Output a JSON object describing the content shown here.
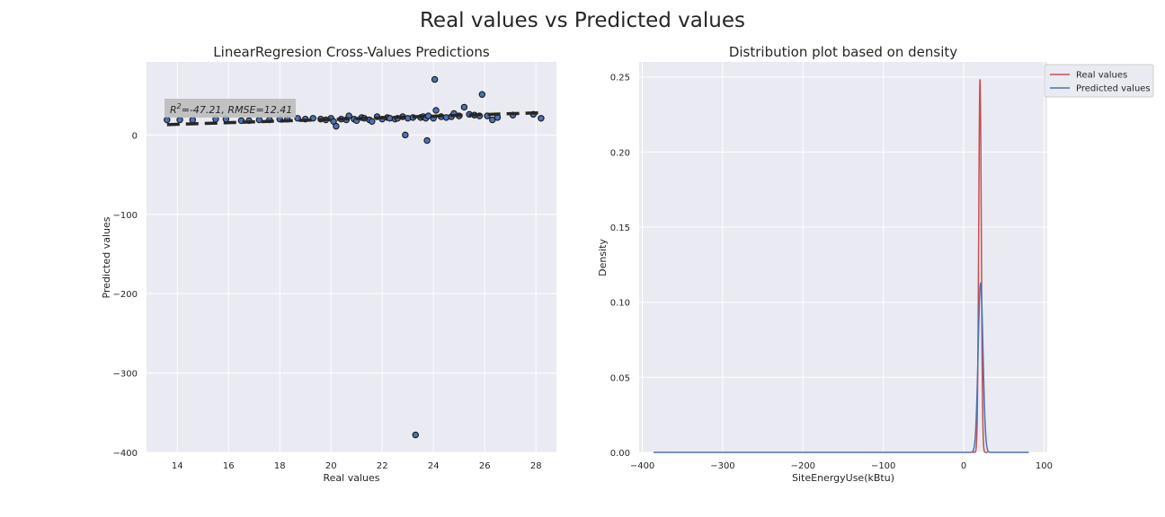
{
  "suptitle": "Real values vs Predicted values",
  "chart_data": [
    {
      "type": "scatter",
      "title": "LinearRegresion Cross-Values Predictions",
      "xlabel": "Real values",
      "ylabel": "Predicted values",
      "xlim": [
        12.8,
        28.8
      ],
      "ylim": [
        -400,
        92
      ],
      "xticks": [
        14,
        16,
        18,
        20,
        22,
        24,
        26,
        28
      ],
      "yticks": [
        -400,
        -300,
        -200,
        -100,
        0
      ],
      "grid": true,
      "annotation": {
        "base": "R",
        "sup": "2",
        "text": "=-47.21, RMSE=12.41"
      },
      "fit_line": {
        "x": [
          13.6,
          28.2
        ],
        "y": [
          13,
          28
        ]
      },
      "marker_color": "#4c72b0",
      "points": [
        [
          13.6,
          19
        ],
        [
          14.1,
          19
        ],
        [
          14.6,
          19
        ],
        [
          15.5,
          20
        ],
        [
          15.9,
          20
        ],
        [
          16.5,
          18
        ],
        [
          16.8,
          18
        ],
        [
          17.2,
          19
        ],
        [
          17.6,
          19
        ],
        [
          18.0,
          20
        ],
        [
          18.3,
          20
        ],
        [
          18.7,
          21
        ],
        [
          19.0,
          20
        ],
        [
          19.3,
          21
        ],
        [
          19.6,
          20
        ],
        [
          19.8,
          19
        ],
        [
          20.0,
          21
        ],
        [
          20.1,
          17
        ],
        [
          20.2,
          11
        ],
        [
          20.4,
          20
        ],
        [
          20.6,
          19
        ],
        [
          20.7,
          24
        ],
        [
          20.9,
          20
        ],
        [
          21.0,
          18
        ],
        [
          21.2,
          22
        ],
        [
          21.3,
          21
        ],
        [
          21.5,
          19
        ],
        [
          21.6,
          17
        ],
        [
          21.8,
          23
        ],
        [
          22.0,
          20
        ],
        [
          22.2,
          22
        ],
        [
          22.3,
          21
        ],
        [
          22.5,
          20
        ],
        [
          22.6,
          21
        ],
        [
          22.8,
          23
        ],
        [
          22.9,
          0
        ],
        [
          23.0,
          21
        ],
        [
          23.2,
          22
        ],
        [
          23.3,
          -378
        ],
        [
          23.5,
          22
        ],
        [
          23.6,
          23
        ],
        [
          23.7,
          21
        ],
        [
          23.75,
          -7
        ],
        [
          23.8,
          24
        ],
        [
          24.0,
          21
        ],
        [
          24.05,
          70
        ],
        [
          24.1,
          31
        ],
        [
          24.3,
          23
        ],
        [
          24.5,
          22
        ],
        [
          24.7,
          23
        ],
        [
          24.8,
          27
        ],
        [
          25.0,
          24
        ],
        [
          25.2,
          35
        ],
        [
          25.4,
          26
        ],
        [
          25.6,
          25
        ],
        [
          25.8,
          24
        ],
        [
          25.9,
          51
        ],
        [
          26.1,
          24
        ],
        [
          26.3,
          19
        ],
        [
          26.5,
          22
        ],
        [
          27.1,
          25
        ],
        [
          27.9,
          26
        ],
        [
          28.2,
          21
        ]
      ]
    },
    {
      "type": "line",
      "title": "Distribution plot based on density",
      "xlabel": "SiteEnergyUse(kBtu)",
      "ylabel": "Density",
      "xlim": [
        -404,
        104
      ],
      "ylim": [
        0,
        0.26
      ],
      "xticks": [
        -400,
        -300,
        -200,
        -100,
        0,
        100
      ],
      "yticks": [
        0.0,
        0.05,
        0.1,
        0.15,
        0.2,
        0.25
      ],
      "yticklabels": [
        "0.00",
        "0.05",
        "0.10",
        "0.15",
        "0.20",
        "0.25"
      ],
      "grid": true,
      "legend_position": "upper-right-outside",
      "series": [
        {
          "name": "Real values",
          "color": "#c44e52",
          "peak_x": 20.3,
          "peak_y": 0.248,
          "spread": 1.6,
          "x_range": [
            11,
            30
          ]
        },
        {
          "name": "Predicted values",
          "color": "#4c72b0",
          "peak_x": 21.0,
          "peak_y": 0.113,
          "spread": 3.0,
          "x_range": [
            -386,
            81
          ]
        }
      ]
    }
  ]
}
